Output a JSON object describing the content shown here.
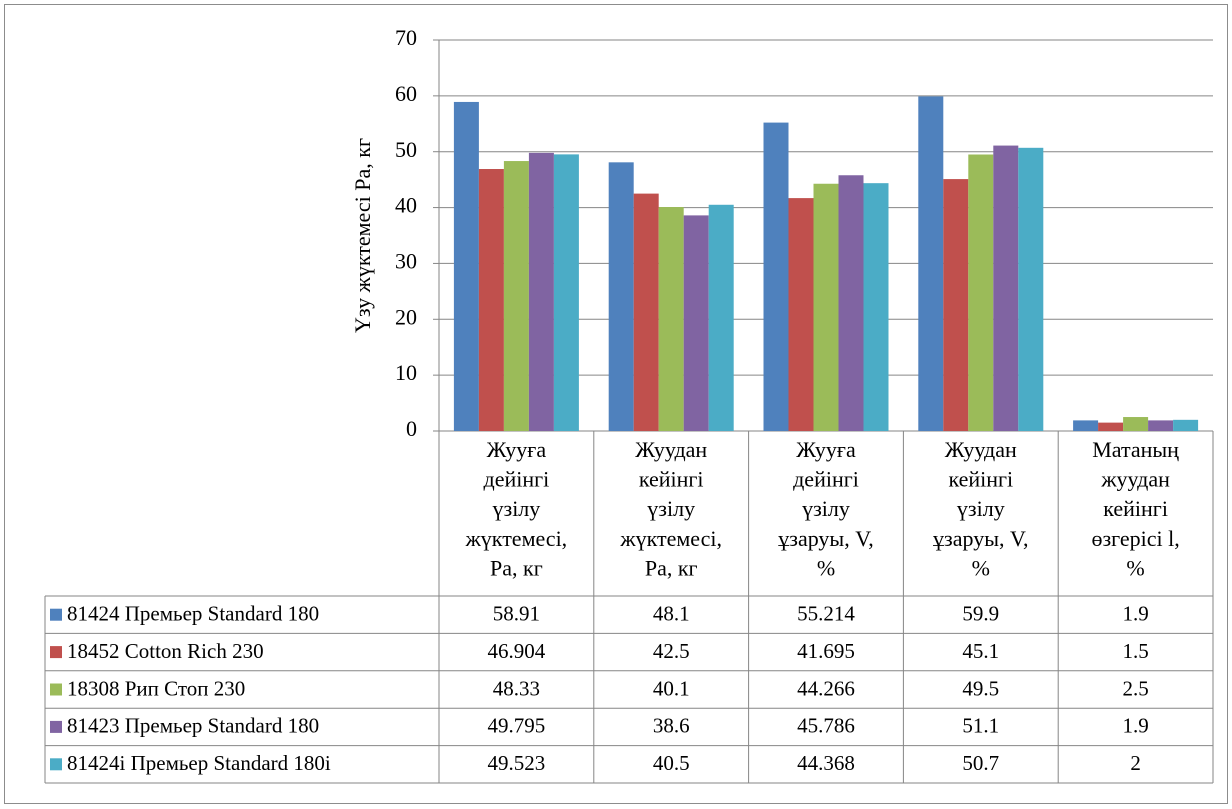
{
  "chart_data": {
    "type": "bar",
    "title": "",
    "ylabel": "Үзу жүктемесі Ра, кг",
    "xlabel": "",
    "ylim": [
      0,
      70
    ],
    "yticks": [
      0,
      10,
      20,
      30,
      40,
      50,
      60,
      70
    ],
    "grid": true,
    "legend": "data-table-left",
    "categories": [
      [
        "Жууға",
        "дейінгі",
        "үзілу",
        "жүктемесі,",
        "Ра, кг"
      ],
      [
        "Жуудан",
        "кейінгі",
        "үзілу",
        "жүктемесі,",
        "Ра, кг"
      ],
      [
        "Жууға",
        "дейінгі",
        "үзілу",
        "ұзаруы, V,",
        "%"
      ],
      [
        "Жуудан",
        "кейінгі",
        "үзілу",
        "ұзаруы, V,",
        "%"
      ],
      [
        "Матаның",
        "жуудан",
        "кейінгі",
        "өзгерісі l,",
        "%"
      ]
    ],
    "series": [
      {
        "name": "81424 Премьер Standard 180",
        "color": "#4F81BD",
        "values": [
          58.91,
          48.1,
          55.214,
          59.9,
          1.9
        ],
        "labels": [
          "58.91",
          "48.1",
          "55.214",
          "59.9",
          "1.9"
        ]
      },
      {
        "name": "18452 Cotton Rich 230",
        "color": "#C0504D",
        "values": [
          46.904,
          42.5,
          41.695,
          45.1,
          1.5
        ],
        "labels": [
          "46.904",
          "42.5",
          "41.695",
          "45.1",
          "1.5"
        ]
      },
      {
        "name": "18308 Рип Стоп 230",
        "color": "#9BBB59",
        "values": [
          48.33,
          40.1,
          44.266,
          49.5,
          2.5
        ],
        "labels": [
          "48.33",
          "40.1",
          "44.266",
          "49.5",
          "2.5"
        ]
      },
      {
        "name": "81423 Премьер Standard 180",
        "color": "#8064A2",
        "values": [
          49.795,
          38.6,
          45.786,
          51.1,
          1.9
        ],
        "labels": [
          "49.795",
          "38.6",
          "45.786",
          "51.1",
          "1.9"
        ]
      },
      {
        "name": "81424i Премьер Standard 180i",
        "color": "#4BACC6",
        "values": [
          49.523,
          40.5,
          44.368,
          50.7,
          2
        ],
        "labels": [
          "49.523",
          "40.5",
          "44.368",
          "50.7",
          "2"
        ]
      }
    ]
  }
}
